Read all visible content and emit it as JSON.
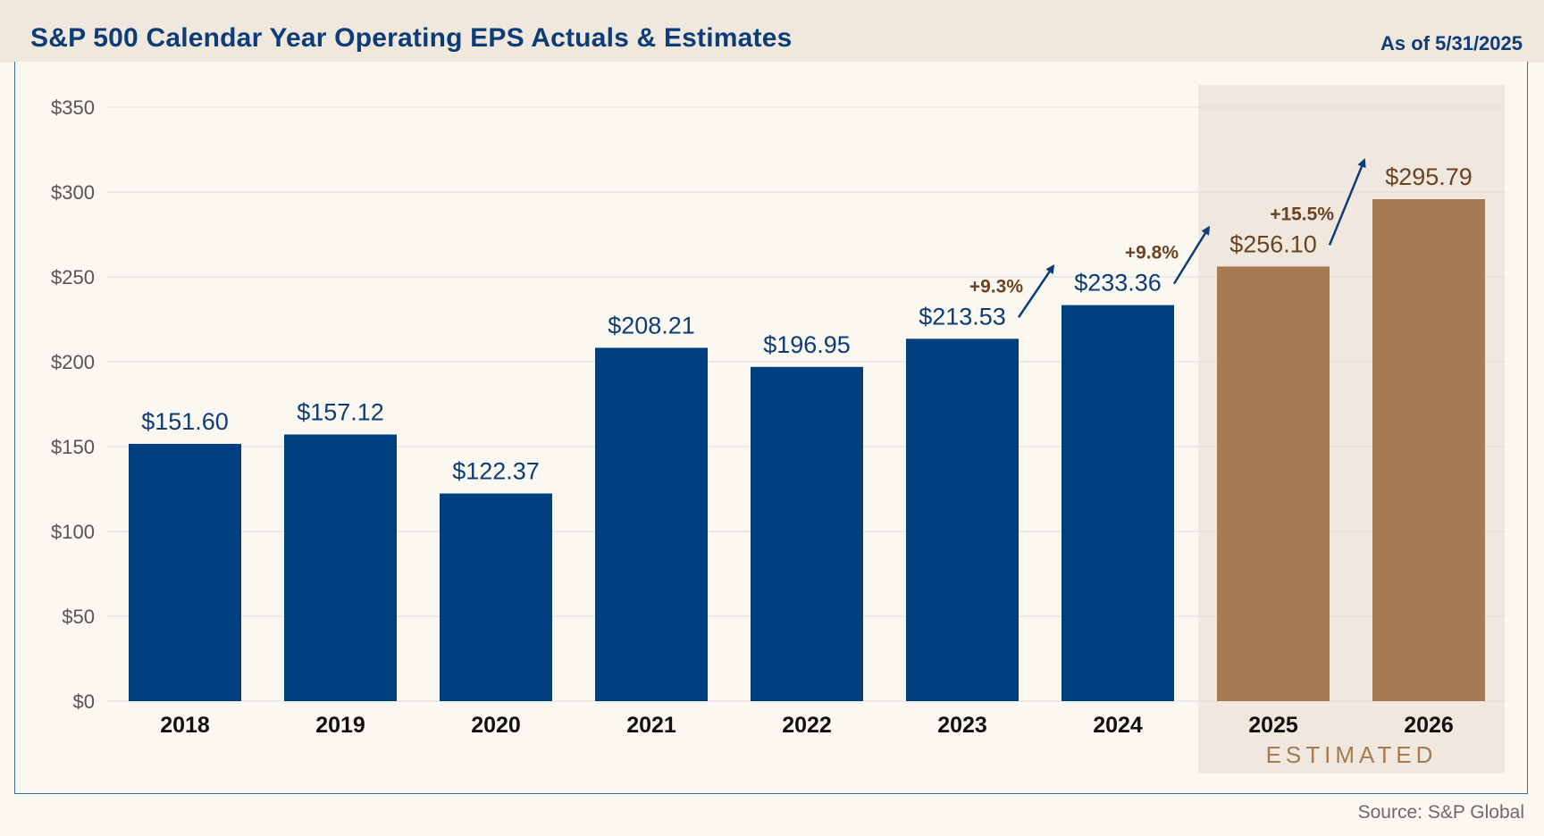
{
  "header": {
    "title": "S&P 500 Calendar Year Operating EPS Actuals & Estimates",
    "as_of": "As of 5/31/2025"
  },
  "footer": {
    "source": "Source: S&P Global"
  },
  "colors": {
    "actual": "#003f7d",
    "estimate": "#a67a52",
    "estimate_band": "#f0e8de",
    "actual_label": "#0d3d78",
    "estimate_label": "#6b4322",
    "growth_label": "#6b4322",
    "arrow": "#0d3d78",
    "axis_text": "#555555",
    "grid": "#dddddd"
  },
  "chart_data": {
    "type": "bar",
    "title": "S&P 500 Calendar Year Operating EPS Actuals & Estimates",
    "xlabel": "",
    "ylabel": "",
    "ylim": [
      0,
      350
    ],
    "yticks": [
      0,
      50,
      100,
      150,
      200,
      250,
      300,
      350
    ],
    "ytick_labels": [
      "$0",
      "$50",
      "$100",
      "$150",
      "$200",
      "$250",
      "$300",
      "$350"
    ],
    "grid": true,
    "categories": [
      "2018",
      "2019",
      "2020",
      "2021",
      "2022",
      "2023",
      "2024",
      "2025",
      "2026"
    ],
    "values": [
      151.6,
      157.12,
      122.37,
      208.21,
      196.95,
      213.53,
      233.36,
      256.1,
      295.79
    ],
    "data_labels": [
      "$151.60",
      "$157.12",
      "$122.37",
      "$208.21",
      "$196.95",
      "$213.53",
      "$233.36",
      "$256.10",
      "$295.79"
    ],
    "estimated": [
      false,
      false,
      false,
      false,
      false,
      false,
      false,
      true,
      true
    ],
    "estimated_label": "ESTIMATED",
    "growth_annotations": [
      {
        "from": "2023",
        "to": "2024",
        "label": "+9.3%"
      },
      {
        "from": "2024",
        "to": "2025",
        "label": "+9.8%"
      },
      {
        "from": "2025",
        "to": "2026",
        "label": "+15.5%"
      }
    ]
  }
}
